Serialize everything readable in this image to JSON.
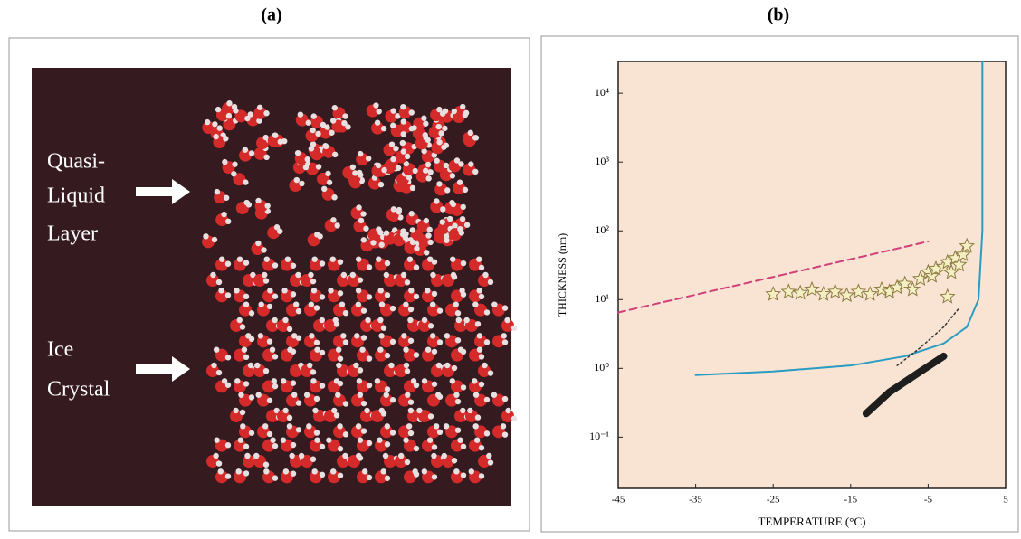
{
  "panel_a": {
    "label": "(a)",
    "annotations": [
      [
        "Quasi-",
        "Liquid",
        "Layer"
      ],
      [
        "Ice",
        "Crystal"
      ]
    ]
  },
  "chart_data": {
    "type": "line",
    "label": "(b)",
    "x_label": "TEMPERATURE (°C)",
    "y_label": "THICKNESS (nm)",
    "xlim": [
      -45,
      5
    ],
    "xticks": [
      -45,
      -35,
      -25,
      -15,
      -5,
      5
    ],
    "ylim": [
      0.018,
      29000
    ],
    "log_y": true,
    "yticks": [
      {
        "value": 0.1,
        "label": "10⁻¹"
      },
      {
        "value": 1,
        "label": "10⁰"
      },
      {
        "value": 10,
        "label": "10¹"
      },
      {
        "value": 100,
        "label": "10²"
      },
      {
        "value": 1000,
        "label": "10³"
      },
      {
        "value": 10000,
        "label": "10⁴"
      }
    ],
    "series": [
      {
        "style": "solid",
        "color": "#2a9cc4",
        "width": 2,
        "x": [
          -35,
          -25,
          -15,
          -8,
          -3,
          0,
          1.5,
          2,
          2,
          2
        ],
        "values": [
          0.8,
          0.9,
          1.1,
          1.5,
          2.3,
          4,
          10,
          100,
          1000,
          29000
        ]
      },
      {
        "style": "dashed",
        "color": "#d0407a",
        "width": 2,
        "x": [
          -45,
          -5
        ],
        "values": [
          6.5,
          70
        ]
      },
      {
        "style": "dotted",
        "color": "#333333",
        "width": 1.5,
        "x": [
          -9,
          -6,
          -3,
          -1
        ],
        "values": [
          1.1,
          2,
          4,
          7.5
        ]
      },
      {
        "style": "solid",
        "color": "#1e1e1e",
        "width": 8,
        "x": [
          -13,
          -10,
          -6,
          -3
        ],
        "values": [
          0.22,
          0.45,
          0.9,
          1.5
        ]
      },
      {
        "type": "scatter",
        "marker": "star",
        "color": "#f4efc2",
        "edge": "#8c7a40",
        "x": [
          -25,
          -23,
          -21.5,
          -20,
          -18.5,
          -17,
          -15.5,
          -14,
          -12.5,
          -11,
          -10,
          -9,
          -8,
          -7,
          -6,
          -5,
          -4.5,
          -4,
          -3,
          -2.5,
          -2,
          -1.5,
          -1,
          -0.5,
          0,
          -2.5
        ],
        "values": [
          12,
          13,
          12.5,
          14,
          12,
          13,
          11.5,
          13,
          12,
          14,
          13,
          15,
          17,
          14,
          20,
          25,
          22,
          28,
          30,
          35,
          25,
          40,
          32,
          45,
          60,
          11
        ]
      }
    ]
  }
}
